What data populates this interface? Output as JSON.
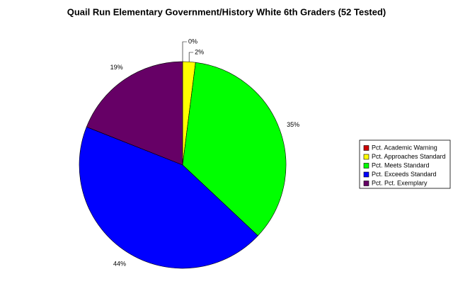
{
  "chart_data": {
    "type": "pie",
    "title": "Quail Run Elementary Government/History White 6th Graders (52 Tested)",
    "categories": [
      "Pct. Academic Warning",
      "Pct. Approaches Standard",
      "Pct. Meets Standard",
      "Pct. Exceeds Standard",
      "Pct. Pct. Exemplary"
    ],
    "values": [
      0,
      2,
      35,
      44,
      19
    ],
    "value_labels": [
      "0%",
      "2%",
      "35%",
      "44%",
      "19%"
    ],
    "colors": [
      "#cc0000",
      "#ffff00",
      "#00ff00",
      "#0000ff",
      "#660066"
    ],
    "legend": "right"
  }
}
